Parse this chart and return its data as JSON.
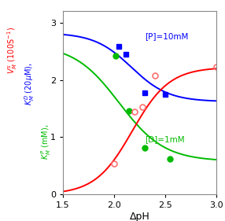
{
  "xlim": [
    1.5,
    3.0
  ],
  "ylim": [
    0,
    3.2
  ],
  "xlabel": "ΔpH",
  "xticks": [
    1.5,
    2.0,
    2.5,
    3.0
  ],
  "yticks": [
    0,
    1,
    2,
    3
  ],
  "label_blue": "[P]=10mM",
  "label_green": "[D]=1mM",
  "blue_curve_params": {
    "high": 2.82,
    "low": 1.62,
    "x0": 2.17,
    "k": 5.5
  },
  "green_curve_params": {
    "high": 2.62,
    "low": 0.58,
    "x0": 2.05,
    "k": 4.5
  },
  "red_curve_params": {
    "high": 2.22,
    "low": 0.0,
    "x0": 2.18,
    "k": 5.5
  },
  "blue_points": [
    [
      2.05,
      2.58
    ],
    [
      2.12,
      2.45
    ],
    [
      2.3,
      1.78
    ],
    [
      2.5,
      1.75
    ]
  ],
  "green_points": [
    [
      2.02,
      2.42
    ],
    [
      2.15,
      1.46
    ],
    [
      2.3,
      0.82
    ],
    [
      2.55,
      0.62
    ]
  ],
  "red_points_open": [
    [
      2.0,
      0.54
    ],
    [
      2.2,
      1.45
    ],
    [
      2.28,
      1.52
    ],
    [
      2.4,
      2.07
    ],
    [
      3.0,
      2.22
    ]
  ],
  "color_blue": "#0000FF",
  "color_green": "#00BB00",
  "color_red": "#FF0000",
  "color_red_open": "#FF7070",
  "bg_color": "#FFFFFF",
  "ylabel_red": "$V_M^s$ (100S$^{-1}$)",
  "ylabel_blue": "$K_M^D$ (20$\\mu$M),",
  "ylabel_green": "$K_M^P$ (mM),"
}
